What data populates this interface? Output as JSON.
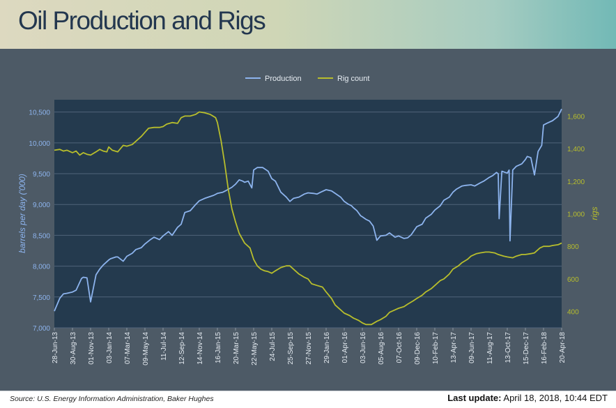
{
  "header": {
    "title": "Oil Production and Rigs"
  },
  "footer": {
    "source": "Source: U.S. Energy Information Administration, Baker Hughes",
    "update_label": "Last update:",
    "update_value": "April 18, 2018, 10:44 EDT"
  },
  "colors": {
    "production": "#8db4ee",
    "rigs": "#b8be2c",
    "plot_bg": "#243a4e",
    "panel_bg": "#4d5a66",
    "grid": "#50647a"
  },
  "chart_data": {
    "type": "line",
    "legend": {
      "position": "top-center",
      "entries": [
        "Production",
        "Rig count"
      ]
    },
    "grid": true,
    "x_ticks": [
      "28-Jun-13",
      "30-Aug-13",
      "01-Nov-13",
      "03-Jan-14",
      "07-Mar-14",
      "09-May-14",
      "11-Jul-14",
      "12-Sep-14",
      "14-Nov-14",
      "16-Jan-15",
      "20-Mar-15",
      "22-May-15",
      "24-Jul-15",
      "25-Sep-15",
      "27-Nov-15",
      "29-Jan-16",
      "01-Apr-16",
      "03-Jun-16",
      "05-Aug-16",
      "07-Oct-16",
      "09-Dec-16",
      "10-Feb-17",
      "13-Apr-17",
      "09-Jun-17",
      "11-Aug-17",
      "13-Oct-17",
      "15-Dec-17",
      "16-Feb-18",
      "20-Apr-18"
    ],
    "y_left": {
      "label": "barrels per day ('000)",
      "min": 7000,
      "max": 10700,
      "ticks": [
        7000,
        7500,
        8000,
        8500,
        9000,
        9500,
        10000,
        10500
      ],
      "tick_labels": [
        "7,000",
        "7,500",
        "8,000",
        "8,500",
        "9,000",
        "9,500",
        "10,000",
        "10,500"
      ]
    },
    "y_right": {
      "label": "rigs",
      "min": 300,
      "max": 1700,
      "ticks": [
        400,
        600,
        800,
        1000,
        1200,
        1400,
        1600
      ],
      "tick_labels": [
        "400",
        "600",
        "800",
        "1,000",
        "1,200",
        "1,400",
        "1,600"
      ]
    },
    "series": [
      {
        "name": "Production",
        "axis": "left",
        "x": [
          0,
          0.3,
          0.5,
          0.7,
          1,
          1.2,
          1.5,
          1.6,
          1.8,
          2,
          2.3,
          2.5,
          2.7,
          3,
          3.1,
          3.4,
          3.5,
          3.8,
          4,
          4.3,
          4.5,
          4.8,
          5,
          5.3,
          5.5,
          5.8,
          6,
          6.3,
          6.5,
          6.8,
          7,
          7.2,
          7.5,
          7.8,
          8,
          8.3,
          8.5,
          8.8,
          9,
          9.3,
          9.5,
          9.8,
          10,
          10.2,
          10.4,
          10.5,
          10.7,
          10.9,
          11,
          11.2,
          11.5,
          11.8,
          12,
          12.2,
          12.5,
          12.8,
          13,
          13.2,
          13.5,
          13.8,
          14,
          14.3,
          14.5,
          14.7,
          15,
          15.3,
          15.5,
          15.8,
          16,
          16.2,
          16.4,
          16.5,
          16.7,
          16.9,
          17,
          17.2,
          17.4,
          17.6,
          17.8,
          18,
          18.3,
          18.5,
          18.8,
          19,
          19.3,
          19.5,
          19.7,
          20,
          20.3,
          20.5,
          20.8,
          21,
          21.3,
          21.5,
          21.8,
          22,
          22.2,
          22.5,
          22.7,
          23,
          23.2,
          23.5,
          23.7,
          24,
          24.2,
          24.4,
          24.5,
          24.55,
          24.7,
          24.9,
          25,
          25.1,
          25.15,
          25.3,
          25.5,
          25.8,
          26,
          26.1,
          26.3,
          26.5,
          26.7,
          26.9,
          27,
          27.2,
          27.5,
          27.8,
          28
        ],
        "values": [
          7270,
          7480,
          7550,
          7560,
          7580,
          7610,
          7800,
          7820,
          7810,
          7420,
          7860,
          7950,
          8020,
          8100,
          8120,
          8150,
          8150,
          8080,
          8160,
          8210,
          8270,
          8300,
          8360,
          8430,
          8470,
          8430,
          8490,
          8560,
          8500,
          8630,
          8680,
          8870,
          8900,
          9000,
          9060,
          9100,
          9120,
          9150,
          9180,
          9200,
          9230,
          9280,
          9330,
          9400,
          9380,
          9360,
          9380,
          9270,
          9560,
          9600,
          9600,
          9540,
          9420,
          9380,
          9200,
          9120,
          9050,
          9100,
          9120,
          9170,
          9190,
          9180,
          9170,
          9200,
          9240,
          9220,
          9180,
          9120,
          9050,
          9010,
          8980,
          8950,
          8900,
          8820,
          8800,
          8760,
          8730,
          8650,
          8420,
          8490,
          8500,
          8540,
          8470,
          8490,
          8450,
          8460,
          8510,
          8640,
          8680,
          8780,
          8840,
          8910,
          8980,
          9070,
          9120,
          9200,
          9250,
          9300,
          9310,
          9320,
          9300,
          9350,
          9380,
          9440,
          9470,
          9520,
          9500,
          8770,
          9540,
          9520,
          9510,
          9560,
          8410,
          9560,
          9620,
          9660,
          9730,
          9780,
          9760,
          9480,
          9860,
          9960,
          10290,
          10320,
          10360,
          10430,
          10550
        ]
      },
      {
        "name": "Rig count",
        "axis": "right",
        "x": [
          0,
          0.3,
          0.5,
          0.7,
          1,
          1.2,
          1.4,
          1.6,
          1.8,
          2,
          2.3,
          2.5,
          2.7,
          2.9,
          3,
          3.2,
          3.5,
          3.8,
          4,
          4.3,
          4.5,
          4.8,
          5,
          5.2,
          5.5,
          5.8,
          6,
          6.2,
          6.5,
          6.8,
          7,
          7.2,
          7.5,
          7.8,
          8,
          8.3,
          8.6,
          8.9,
          9,
          9.2,
          9.4,
          9.6,
          9.8,
          10,
          10.2,
          10.5,
          10.8,
          11,
          11.2,
          11.4,
          11.6,
          11.8,
          12,
          12.2,
          12.5,
          12.8,
          13,
          13.2,
          13.5,
          13.8,
          14,
          14.2,
          14.5,
          14.8,
          15,
          15.3,
          15.5,
          15.8,
          16,
          16.3,
          16.5,
          16.8,
          17,
          17.2,
          17.5,
          17.8,
          18,
          18.3,
          18.5,
          18.8,
          19,
          19.3,
          19.5,
          19.8,
          20,
          20.3,
          20.5,
          20.8,
          21,
          21.3,
          21.5,
          21.8,
          22,
          22.3,
          22.5,
          22.8,
          23,
          23.3,
          23.5,
          23.8,
          24,
          24.3,
          24.5,
          24.8,
          25,
          25.3,
          25.5,
          25.8,
          26,
          26.3,
          26.5,
          26.8,
          27,
          27.3,
          27.5,
          27.8,
          28
        ],
        "values": [
          1390,
          1395,
          1385,
          1390,
          1375,
          1385,
          1360,
          1375,
          1365,
          1360,
          1380,
          1395,
          1385,
          1380,
          1410,
          1390,
          1380,
          1420,
          1415,
          1425,
          1445,
          1475,
          1500,
          1525,
          1530,
          1530,
          1535,
          1550,
          1560,
          1555,
          1590,
          1600,
          1600,
          1610,
          1625,
          1620,
          1610,
          1590,
          1560,
          1450,
          1310,
          1150,
          1030,
          950,
          880,
          820,
          790,
          720,
          680,
          660,
          650,
          645,
          635,
          650,
          670,
          680,
          680,
          660,
          630,
          610,
          600,
          570,
          560,
          550,
          520,
          480,
          440,
          410,
          390,
          375,
          360,
          345,
          330,
          320,
          320,
          340,
          350,
          370,
          395,
          410,
          420,
          430,
          445,
          465,
          480,
          500,
          520,
          540,
          560,
          590,
          600,
          630,
          660,
          680,
          700,
          720,
          740,
          755,
          760,
          765,
          765,
          760,
          750,
          740,
          735,
          730,
          740,
          750,
          750,
          755,
          760,
          790,
          800,
          800,
          805,
          810,
          820
        ]
      }
    ]
  }
}
